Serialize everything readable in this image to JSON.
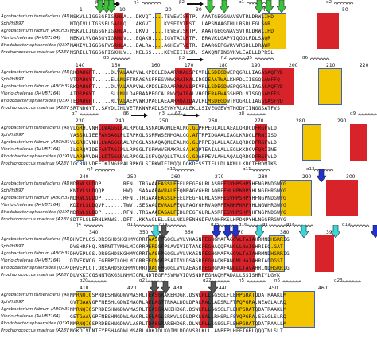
{
  "species": [
    "Agrobacterium tumefaciens (4DJA)",
    "SphPhlB97",
    "Agrobacterium fabrum (A8CH39)",
    "Vibrio cholerae (A4VB7164)",
    "Rhodobacter sphaeroides (Q3XP1)",
    "Prochlorococcus marinus (A2BV85)"
  ],
  "blocks": [
    {
      "numbers": [
        "1",
        "10",
        "20",
        "30",
        "40",
        "50"
      ],
      "ss_labels": [
        "β1",
        "η1",
        "β2",
        "α1",
        "α2"
      ],
      "sequences": [
        "MSKVLLIGGSGFIGAHLA...DKVQT....TEVEVISRTP..AAATGEGGNAVSVTRLDRWLIHD",
        "MTQIVLLTGSSFLGALLQ...AKGVT....KVSEIVTRST..LAPSNAAGTHLLRSDLEGLSGR",
        "MSKVLLIGGSGFIGAHLA...DKVQT....TEVEVISRTP..AAATGEGGNAVSVTRLDRWLIHD",
        "MEKVLVVGASGYIGRHLV...EQAKH....IGVTAILRTP..ERAVKLGAPVIQGDLRDLSAQR",
        "MAKIVLIGGSGFVGRHLA...DALRA....AGHEVTVLTR..DAARGEPGVRVVRGDLLDRAWR",
        "MSRILLTGGSGFIGKHLV...NELSS....KEYEIIILSR..SAKQNPINGVKVLEADLLDPRSL"
      ]
    },
    {
      "numbers": [
        "140",
        "150",
        "160",
        "170",
        "180",
        "190",
        "200",
        "210",
        "220"
      ],
      "ss_labels": [
        "α3",
        "β3",
        "η2",
        "α5",
        "α6"
      ],
      "sequences": [
        "RKDAHGFT.....DLVALAAPVWLKPDGLEDAARRRALSPIVRLLSDEGDWEPQGRLLIAGASAQFVD",
        "VTDAHGYT.....ELLNLFTRRASASPPEGVHWQRAIKALIDGDEAATWALKHPDLIISGQSAWFFQ",
        "RKDAHGFT.....DLVALAAPVWLKPDGLEDAARRRALSPIVRLLSDEGDWEPQGRLLIAGASAQFVD",
        "AIDSPGYT.....SLLNLLDAPRAAPEGCALRWVQAIEALVHGDERAEWAGSHPDLVISGQSAMFFS",
        "TEDAHGFT.....RLVALAEPVWRDPAGLAEAARRQAIDAVLRLMSDEGDWTPQGRLLIAGSSASFVD",
        "SRTNDGYT..SAYDLIHLVETRKNWPADLSEVKYRLALEKLLSIVEGGEVHTHGDYIINGGSATFVS"
      ]
    },
    {
      "numbers": [
        "230",
        "240",
        "250",
        "260",
        "270",
        "280",
        "290"
      ],
      "ss_labels": [
        "α7",
        "β6",
        "η3",
        "β7",
        "α8",
        "α9"
      ],
      "sequences": [
        "VLGRHIVNHLLWAGGLRALRPGGLASNAQAQMLEALNG.GLPRPEQLALLAEALQRDGDFRGFVLD",
        "VASSRLIEEFANSAGLPLIRPKGLSSRRWSEMMGALGG.ATTRPIDGAALIAGLKRDGLFRNIISD",
        "VLGRHIVNHLLWAGGLRALRPGGLASNAQAQMLEALNG.GLPRPEQLALLAEALQRDGDFRGFVLD",
        "ILSRQVIDEFANTAGIPLLRPSGLTSRKWVEMAKRLSA.KQPTEAIALALLEGLKKDGVFQRIINE",
        "VLARHVVDHLLDTGGLRVLRPGGLSSPVQVQLLTALSG.GDARPEVLAHLAQALQRDGDFRGFVLD",
        "IGCRNLVDEFTKINGFPALRPKGLSIRKWIEIMQQLDGKDESSTIELLDLAKNLLKDGTFRDMIKS"
      ]
    },
    {
      "numbers": [
        "240",
        "250",
        "260",
        "270",
        "280",
        "290",
        "300"
      ],
      "ss_labels": [
        "η4",
        "α10",
        "α11",
        "α12"
      ],
      "sequences": [
        "NDRWLSLDDP.......RFN..TRGAAAEASSLFEELPEGFGLRLASRFEGVHPSHPYHFNGPNDGWYG",
        "KNIYLSLDQQP......HWQ..SAAAAEAVRALFEQMPAGYGHRLAQRFEHLHPNRPYHLNGFHRGWYG",
        "NDRWLSLDDP.......RFN..TRGAAAEASSLFEELPEGFGLRLASRFEGVHPSHPYHFNGPNDGWYG",
        "KDIYLSLDQVP......TWV..SESAAQEVRALFEQLPAGYGHRVAQRFEAMHPNRPYHLNGWHRGWYG",
        "NDRWLSLDDP.......RFN..TRGAAAEASALFEDLPEGFGLRLASRFEGVHPSHPYHFNGPNDGWYG",
        "SDTFLSLERNLKNWS..DFT..KKAAGLELLELLNKLPENHGDFVAQHFKSLHPDNPYHLNGGFRGWYG"
      ]
    },
    {
      "numbers": [
        "340",
        "350",
        "360",
        "370",
        "380",
        "390"
      ],
      "ss_labels": [
        "η4",
        "α13",
        "α14",
        "α15",
        "α16",
        "α17",
        "α18",
        "α19"
      ],
      "sequences": [
        "DHVEPLGS.DRSGHDSKGHMVGRRTAASFPGQGLVVLVKASNFEGHGMAFAGGVLTAIAHRMNDHGRRIG",
        "DVSHRFHQ.RNRNTTVNHLMIGRRPERDGFPSAVIVIDTAAKFEGHAQQFANGLLNAISHRIEQ.GAT",
        "DHVEPLGS.DRSGHDSKGHMVGRRTAASFPGQGLVVLVKASNFEGHGMAFAGGVLTAIAHRMNDHGRRIG",
        "DIVEKWQG.EGERPTLQHLMIGRREEQNGFPSAIIVLDSASRFEGHAQKFANGMLHAIAHRIADDGST",
        "DHVEPLGT.DRSAHDSRGHMVGRRTDAGFPGQGLVVLAEASRFEGHGMAFANGLLTAVAHRLNDHGRRIG",
        "DLVKKIGGSNNTGKGSLNHMIGRLNDTEGFPSVMVVIDVSNDFEGHAQHFADALLSSISHRIYLGYK"
      ]
    },
    {
      "numbers": [
        "410",
        "420",
        "430",
        "440",
        "450",
        "460"
      ],
      "ss_labels": [
        "α20",
        "α21",
        "α22",
        "η5",
        "η6",
        "α23"
      ],
      "sequences": [
        "NMRNQIGSPRDESHNGDWVMASRLTEASGRAKEHDGR.DSWLRLLSGSGLFLEHPGRATQDATRAAKLM",
        "GVTGAAVGPFNESHLGDWIMAGRLAELAGTTRKALDDLDPALRALLADSRLFTFQPGRA.NEAGLALRQ",
        "NMRNQIGSPRDESHNGDWVMASRLTEASGRAKEHDGR.DSWLRLLSGSGLFLEHPGRATQDATRAAKLM",
        "GETGAAVGPFNESHMGDWLMAGRLSELAGLSRKVLSDLDPKLSALLRHSRLFSYQPGRA.SEAGLSLRQ",
        "NMRNQIGSPRDESHNGDWVLASRLTDASGRAREHDGR.DLWLRLLSGSGLFLEHPGRATQDATRAALLM",
        "NGKDIVDNIFYESHAGDWLMSARLNDKIDLKQIMLDDQVSRLKLLLANPFPLHFETGRLQQQTNLSLT"
      ]
    }
  ],
  "colors": {
    "strict": "#d9232b",
    "similar": "#f2c500",
    "green_arrow": "#3cc23c",
    "blue_arrow": "#2233cc",
    "cyan_arrow": "#3dd6d6",
    "gray_arrow": "#555555"
  }
}
